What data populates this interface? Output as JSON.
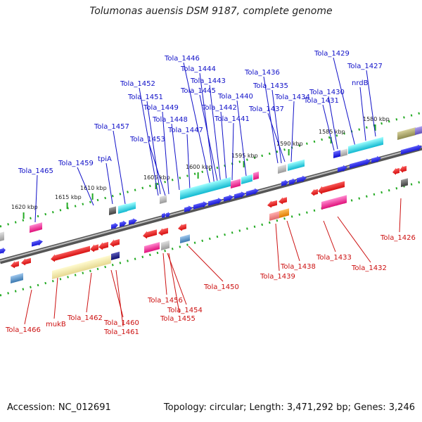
{
  "title": "Tolumonas auensis DSM 9187, complete genome",
  "footer": {
    "accession": "Accession: NC_012691",
    "meta": "Topology: circular; Length: 3,471,292 bp; Genes: 3,246"
  },
  "kbp_marks": [
    "1620 kbp",
    "1615 kbp",
    "1610 kbp",
    "1605 kbp",
    "1600 kbp",
    "1595 kbp",
    "1590 kbp",
    "1585 kbp",
    "1580 kbp"
  ],
  "top_labels": [
    "Tola_1465",
    "Tola_1459",
    "tpiA",
    "Tola_1457",
    "Tola_1453",
    "Tola_1452",
    "Tola_1451",
    "Tola_1449",
    "Tola_1448",
    "Tola_1447",
    "Tola_1446",
    "Tola_1444",
    "Tola_1445",
    "Tola_1443",
    "Tola_1442",
    "Tola_1441",
    "Tola_1440",
    "Tola_1436",
    "Tola_1435",
    "Tola_1437",
    "Tola_1434",
    "Tola_1429",
    "Tola_1430",
    "Tola_1431",
    "Tola_1427",
    "nrdB"
  ],
  "bottom_labels": [
    "Tola_1466",
    "mukB",
    "Tola_1462",
    "Tola_1460",
    "Tola_1461",
    "Tola_1456",
    "Tola_1454",
    "Tola_1455",
    "Tola_1450",
    "Tola_1439",
    "Tola_1438",
    "Tola_1433",
    "Tola_1432",
    "Tola_1426"
  ],
  "colors": {
    "forward_gene": "#1212e0",
    "reverse_gene": "#e01010",
    "top_label": "#1010c8",
    "bottom_label": "#cc1010",
    "backbone": "#8c8c8c",
    "tick": "#22aa22"
  }
}
